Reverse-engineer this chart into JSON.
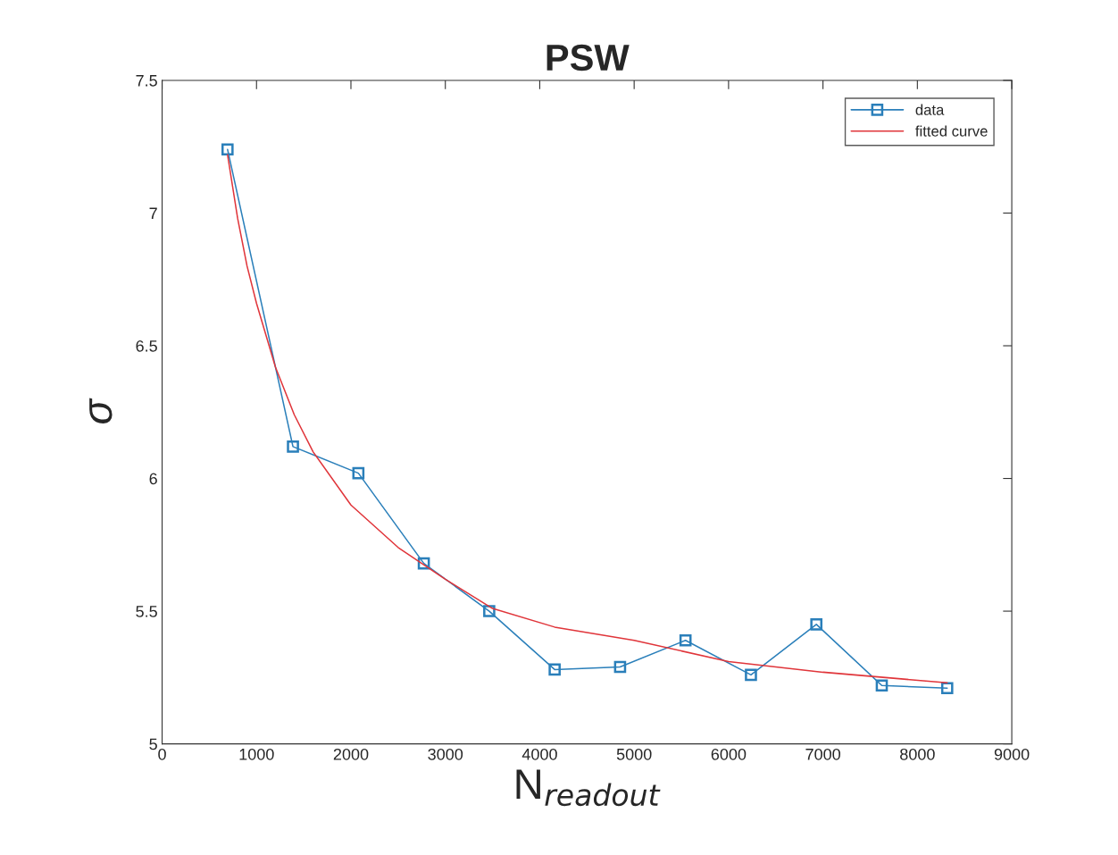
{
  "chart_data": {
    "type": "line",
    "title": "PSW",
    "xlabel": "N$_{readout}$",
    "ylabel": "σ",
    "xlim": [
      0,
      9000
    ],
    "xticks": [
      0,
      1000,
      2000,
      3000,
      4000,
      5000,
      6000,
      7000,
      8000,
      9000
    ],
    "ylim": [
      5,
      7.5
    ],
    "yticks": [
      5,
      5.5,
      6,
      6.5,
      7,
      7.5
    ],
    "grid": false,
    "legend": "top right",
    "series": [
      {
        "name": "data",
        "color": "#2a7fba",
        "marker": "square",
        "line_style": "solid",
        "x": [
          693,
          1386,
          2079,
          2772,
          3465,
          4158,
          4851,
          5544,
          6237,
          6930,
          7623,
          8316
        ],
        "values": [
          7.24,
          6.12,
          6.02,
          5.68,
          5.5,
          5.28,
          5.29,
          5.39,
          5.26,
          5.45,
          5.22,
          5.21
        ]
      },
      {
        "name": "fitted curve",
        "color": "#e0353a",
        "marker": "none",
        "line_style": "solid",
        "x": [
          693,
          800,
          900,
          1000,
          1200,
          1400,
          1600,
          2000,
          2500,
          3000,
          3500,
          4158,
          5000,
          6000,
          7000,
          8316
        ],
        "values": [
          7.22,
          6.98,
          6.8,
          6.66,
          6.42,
          6.24,
          6.1,
          5.9,
          5.74,
          5.62,
          5.51,
          5.44,
          5.39,
          5.31,
          5.27,
          5.23
        ]
      }
    ]
  }
}
